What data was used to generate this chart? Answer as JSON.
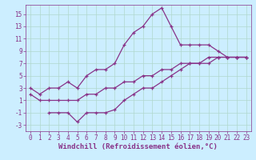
{
  "background_color": "#cceeff",
  "grid_color": "#b0d8cc",
  "line_color": "#883388",
  "xlim": [
    -0.5,
    23.5
  ],
  "ylim": [
    -4,
    16.5
  ],
  "xlabel": "Windchill (Refroidissement éolien,°C)",
  "xlabel_fontsize": 6.5,
  "xticks": [
    0,
    1,
    2,
    3,
    4,
    5,
    6,
    7,
    8,
    9,
    10,
    11,
    12,
    13,
    14,
    15,
    16,
    17,
    18,
    19,
    20,
    21,
    22,
    23
  ],
  "yticks": [
    -3,
    -1,
    1,
    3,
    5,
    7,
    9,
    11,
    13,
    15
  ],
  "tick_fontsize": 5.5,
  "line1_x": [
    0,
    1,
    2,
    3,
    4,
    5,
    6,
    7,
    8,
    9,
    10,
    11,
    12,
    13,
    14,
    15,
    16,
    17,
    18,
    19,
    20,
    21,
    22,
    23
  ],
  "line1_y": [
    3,
    2,
    3,
    3,
    4,
    3,
    5,
    6,
    6,
    7,
    10,
    12,
    13,
    15,
    16,
    13,
    10,
    10,
    10,
    10,
    9,
    8,
    8,
    8
  ],
  "line2_x": [
    0,
    1,
    2,
    3,
    4,
    5,
    6,
    7,
    8,
    9,
    10,
    11,
    12,
    13,
    14,
    15,
    16,
    17,
    18,
    19,
    20,
    21,
    22,
    23
  ],
  "line2_y": [
    2,
    1,
    1,
    1,
    1,
    1,
    2,
    2,
    3,
    3,
    4,
    4,
    5,
    5,
    6,
    6,
    7,
    7,
    7,
    8,
    8,
    8,
    8,
    8
  ],
  "line3_x": [
    2,
    3,
    4,
    5,
    6,
    7,
    8,
    9,
    10,
    11,
    12,
    13,
    14,
    15,
    16,
    17,
    18,
    19,
    20,
    21,
    22,
    23
  ],
  "line3_y": [
    -1,
    -1,
    -1,
    -2.5,
    -1,
    -1,
    -1,
    -0.5,
    1,
    2,
    3,
    3,
    4,
    5,
    6,
    7,
    7,
    7,
    8,
    8,
    8,
    8
  ]
}
